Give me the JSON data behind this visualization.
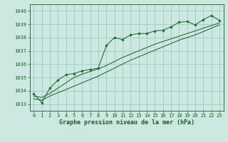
{
  "xlabel": "Graphe pression niveau de la mer (hPa)",
  "bg_color": "#cce8e0",
  "grid_color": "#99ccc0",
  "line_color": "#1a5c2a",
  "xlim": [
    -0.5,
    23.5
  ],
  "ylim": [
    1032.5,
    1040.5
  ],
  "yticks": [
    1033,
    1034,
    1035,
    1036,
    1037,
    1038,
    1039,
    1040
  ],
  "xticks": [
    0,
    1,
    2,
    3,
    4,
    5,
    6,
    7,
    8,
    9,
    10,
    11,
    12,
    13,
    14,
    15,
    16,
    17,
    18,
    19,
    20,
    21,
    22,
    23
  ],
  "pressure": [
    1033.8,
    1033.1,
    1034.2,
    1034.8,
    1035.2,
    1035.3,
    1035.5,
    1035.6,
    1035.7,
    1037.4,
    1038.0,
    1037.85,
    1038.2,
    1038.3,
    1038.3,
    1038.5,
    1038.55,
    1038.8,
    1039.15,
    1039.2,
    1038.95,
    1039.35,
    1039.65,
    1039.3
  ],
  "smooth1": [
    1033.6,
    1033.5,
    1033.8,
    1034.2,
    1034.6,
    1035.0,
    1035.25,
    1035.45,
    1035.65,
    1035.9,
    1036.2,
    1036.5,
    1036.75,
    1037.0,
    1037.25,
    1037.5,
    1037.7,
    1037.9,
    1038.1,
    1038.3,
    1038.5,
    1038.7,
    1038.9,
    1039.1
  ],
  "smooth2": [
    1033.4,
    1033.3,
    1033.6,
    1033.85,
    1034.1,
    1034.35,
    1034.6,
    1034.85,
    1035.1,
    1035.4,
    1035.7,
    1036.0,
    1036.3,
    1036.55,
    1036.8,
    1037.05,
    1037.3,
    1037.55,
    1037.8,
    1038.0,
    1038.2,
    1038.45,
    1038.7,
    1038.95
  ]
}
